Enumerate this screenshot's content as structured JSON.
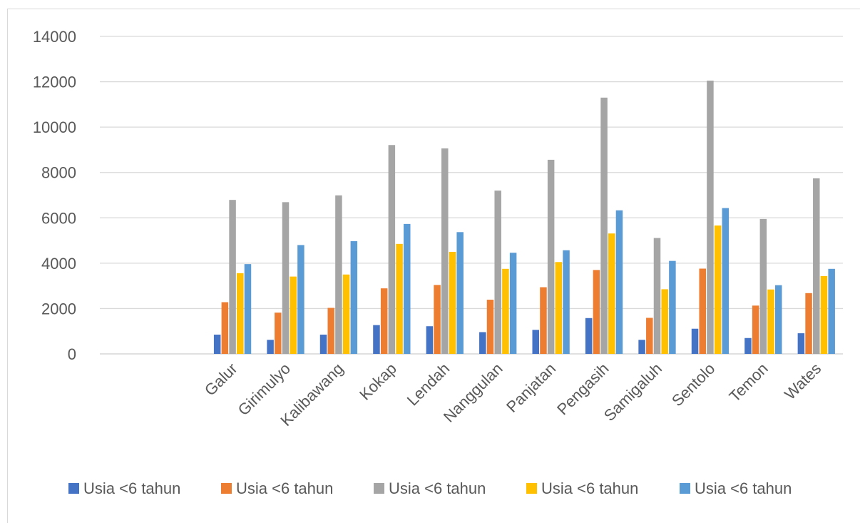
{
  "chart_data": {
    "type": "bar",
    "title": "",
    "xlabel": "",
    "ylabel": "",
    "ylim": [
      0,
      14000
    ],
    "yticks": [
      0,
      2000,
      4000,
      6000,
      8000,
      10000,
      12000,
      14000
    ],
    "grid": true,
    "legend_position": "bottom",
    "categories": [
      "",
      "",
      "Galur",
      "Girimulyo",
      "Kalibawang",
      "Kokap",
      "Lendah",
      "Nanggulan",
      "Panjatan",
      "Pengasih",
      "Samigaluh",
      "Sentolo",
      "Temon",
      "Wates"
    ],
    "series": [
      {
        "name": "Usia <6 tahun",
        "color": "#4472c4",
        "values": [
          0,
          0,
          850,
          620,
          850,
          1270,
          1220,
          960,
          1060,
          1580,
          620,
          1110,
          700,
          910
        ]
      },
      {
        "name": "Usia <6 tahun",
        "color": "#ed7d31",
        "values": [
          0,
          0,
          2280,
          1820,
          2030,
          2890,
          3040,
          2390,
          2940,
          3700,
          1590,
          3760,
          2130,
          2680
        ]
      },
      {
        "name": "Usia <6 tahun",
        "color": "#a5a5a5",
        "values": [
          0,
          0,
          6790,
          6690,
          6990,
          9210,
          9060,
          7200,
          8560,
          11300,
          5110,
          12050,
          5950,
          7740
        ]
      },
      {
        "name": "Usia <6 tahun",
        "color": "#ffc000",
        "values": [
          0,
          0,
          3560,
          3410,
          3500,
          4850,
          4500,
          3750,
          4050,
          5310,
          2850,
          5660,
          2840,
          3430
        ]
      },
      {
        "name": "Usia <6 tahun",
        "color": "#5b9bd5",
        "values": [
          0,
          0,
          3960,
          4800,
          4970,
          5730,
          5370,
          4460,
          4570,
          6330,
          4100,
          6430,
          3030,
          3750
        ]
      }
    ]
  }
}
